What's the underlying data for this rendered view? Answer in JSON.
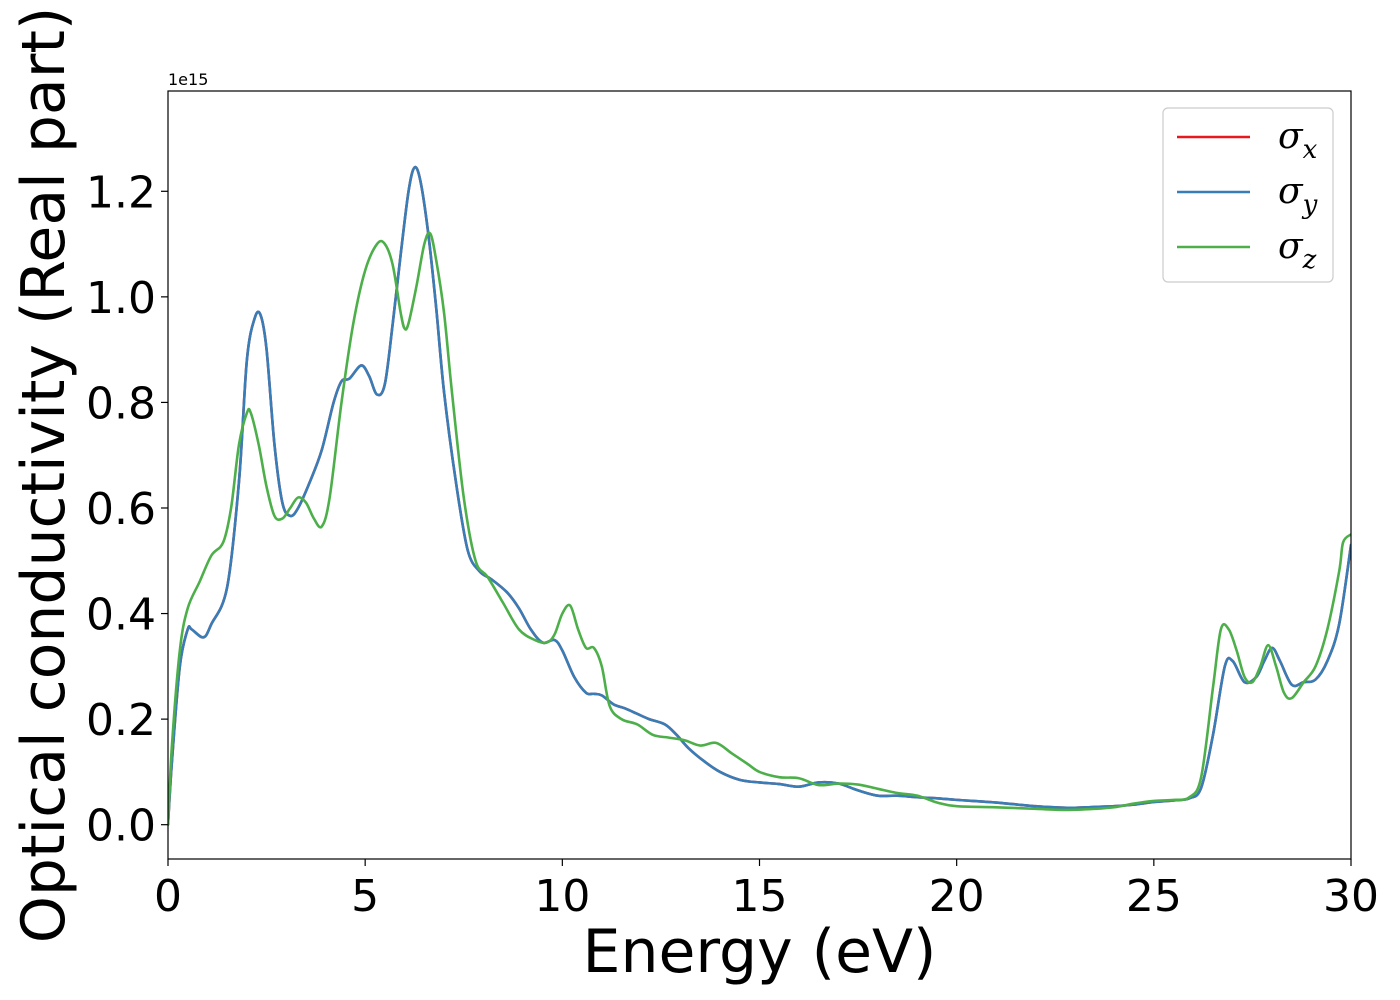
{
  "chart_data": {
    "type": "line",
    "xlabel": "Energy (eV)",
    "ylabel": "Optical conductivity (Real part)",
    "y_offset_label": "1e15",
    "xlim": [
      0,
      30
    ],
    "ylim": [
      -0.065,
      1.39
    ],
    "xticks": [
      0,
      5,
      10,
      15,
      20,
      25,
      30
    ],
    "xtick_labels": [
      "0",
      "5",
      "10",
      "15",
      "20",
      "25",
      "30"
    ],
    "yticks": [
      0.0,
      0.2,
      0.4,
      0.6,
      0.8,
      1.0,
      1.2
    ],
    "ytick_labels": [
      "0.0",
      "0.2",
      "0.4",
      "0.6",
      "0.8",
      "1.0",
      "1.2"
    ],
    "grid": false,
    "legend_position": "top-right",
    "series": [
      {
        "name": "σx",
        "name_base": "σ",
        "name_sub": "x",
        "color": "#e41a1c",
        "x": [
          0.0,
          0.1,
          0.3,
          0.5,
          0.6,
          0.9,
          1.1,
          1.5,
          1.8,
          2.0,
          2.2,
          2.35,
          2.5,
          2.7,
          2.9,
          3.1,
          3.3,
          3.6,
          3.9,
          4.2,
          4.4,
          4.6,
          4.9,
          5.1,
          5.3,
          5.5,
          5.7,
          5.9,
          6.1,
          6.25,
          6.4,
          6.6,
          6.8,
          7.0,
          7.3,
          7.6,
          7.9,
          8.2,
          8.6,
          8.9,
          9.2,
          9.5,
          9.8,
          10.0,
          10.3,
          10.6,
          10.8,
          11.0,
          11.3,
          11.6,
          11.9,
          12.2,
          12.6,
          12.9,
          13.2,
          13.6,
          14.0,
          14.5,
          15.0,
          15.5,
          16.0,
          16.5,
          17.0,
          17.5,
          18.0,
          18.5,
          19.0,
          19.5,
          20.0,
          21.0,
          22.0,
          22.8,
          23.3,
          24.0,
          24.5,
          25.0,
          25.5,
          25.9,
          26.2,
          26.5,
          26.8,
          27.0,
          27.3,
          27.6,
          27.8,
          28.0,
          28.2,
          28.5,
          28.8,
          29.1,
          29.4,
          29.7,
          30.0
        ],
        "y": [
          0.0,
          0.12,
          0.3,
          0.37,
          0.37,
          0.355,
          0.38,
          0.45,
          0.65,
          0.88,
          0.96,
          0.965,
          0.9,
          0.72,
          0.61,
          0.585,
          0.6,
          0.65,
          0.71,
          0.8,
          0.84,
          0.845,
          0.87,
          0.85,
          0.815,
          0.835,
          0.95,
          1.08,
          1.2,
          1.245,
          1.22,
          1.12,
          0.98,
          0.82,
          0.65,
          0.52,
          0.48,
          0.465,
          0.44,
          0.41,
          0.37,
          0.345,
          0.35,
          0.33,
          0.28,
          0.25,
          0.248,
          0.245,
          0.228,
          0.22,
          0.21,
          0.2,
          0.19,
          0.17,
          0.145,
          0.12,
          0.1,
          0.085,
          0.08,
          0.077,
          0.072,
          0.08,
          0.078,
          0.065,
          0.055,
          0.055,
          0.052,
          0.05,
          0.047,
          0.042,
          0.035,
          0.032,
          0.033,
          0.035,
          0.038,
          0.043,
          0.046,
          0.05,
          0.07,
          0.17,
          0.3,
          0.31,
          0.27,
          0.28,
          0.31,
          0.335,
          0.31,
          0.265,
          0.27,
          0.275,
          0.31,
          0.38,
          0.53
        ]
      },
      {
        "name": "σy",
        "name_base": "σ",
        "name_sub": "y",
        "color": "#377eb8",
        "x": [
          0.0,
          0.1,
          0.3,
          0.5,
          0.6,
          0.9,
          1.1,
          1.5,
          1.8,
          2.0,
          2.2,
          2.35,
          2.5,
          2.7,
          2.9,
          3.1,
          3.3,
          3.6,
          3.9,
          4.2,
          4.4,
          4.6,
          4.9,
          5.1,
          5.3,
          5.5,
          5.7,
          5.9,
          6.1,
          6.25,
          6.4,
          6.6,
          6.8,
          7.0,
          7.3,
          7.6,
          7.9,
          8.2,
          8.6,
          8.9,
          9.2,
          9.5,
          9.8,
          10.0,
          10.3,
          10.6,
          10.8,
          11.0,
          11.3,
          11.6,
          11.9,
          12.2,
          12.6,
          12.9,
          13.2,
          13.6,
          14.0,
          14.5,
          15.0,
          15.5,
          16.0,
          16.5,
          17.0,
          17.5,
          18.0,
          18.5,
          19.0,
          19.5,
          20.0,
          21.0,
          22.0,
          22.8,
          23.3,
          24.0,
          24.5,
          25.0,
          25.5,
          25.9,
          26.2,
          26.5,
          26.8,
          27.0,
          27.3,
          27.6,
          27.8,
          28.0,
          28.2,
          28.5,
          28.8,
          29.1,
          29.4,
          29.7,
          30.0
        ],
        "y": [
          0.0,
          0.12,
          0.3,
          0.37,
          0.37,
          0.355,
          0.38,
          0.45,
          0.65,
          0.88,
          0.96,
          0.965,
          0.9,
          0.72,
          0.61,
          0.585,
          0.6,
          0.65,
          0.71,
          0.8,
          0.84,
          0.845,
          0.87,
          0.85,
          0.815,
          0.835,
          0.95,
          1.08,
          1.2,
          1.245,
          1.22,
          1.12,
          0.98,
          0.82,
          0.65,
          0.52,
          0.48,
          0.465,
          0.44,
          0.41,
          0.37,
          0.345,
          0.35,
          0.33,
          0.28,
          0.25,
          0.248,
          0.245,
          0.228,
          0.22,
          0.21,
          0.2,
          0.19,
          0.17,
          0.145,
          0.12,
          0.1,
          0.085,
          0.08,
          0.077,
          0.072,
          0.08,
          0.078,
          0.065,
          0.055,
          0.055,
          0.052,
          0.05,
          0.047,
          0.042,
          0.035,
          0.032,
          0.033,
          0.035,
          0.038,
          0.043,
          0.046,
          0.05,
          0.07,
          0.17,
          0.3,
          0.31,
          0.27,
          0.28,
          0.31,
          0.335,
          0.31,
          0.265,
          0.27,
          0.275,
          0.31,
          0.38,
          0.53
        ]
      },
      {
        "name": "σz",
        "name_base": "σ",
        "name_sub": "z",
        "color": "#4daf4a",
        "x": [
          0.0,
          0.1,
          0.3,
          0.5,
          0.8,
          1.1,
          1.4,
          1.6,
          1.8,
          2.0,
          2.1,
          2.3,
          2.5,
          2.7,
          2.9,
          3.1,
          3.3,
          3.5,
          3.7,
          3.9,
          4.1,
          4.4,
          4.7,
          5.0,
          5.3,
          5.5,
          5.7,
          5.9,
          6.0,
          6.1,
          6.3,
          6.5,
          6.65,
          6.8,
          7.0,
          7.2,
          7.5,
          7.8,
          8.1,
          8.5,
          8.9,
          9.3,
          9.6,
          9.8,
          10.0,
          10.2,
          10.4,
          10.6,
          10.8,
          11.0,
          11.2,
          11.5,
          11.9,
          12.3,
          12.7,
          13.1,
          13.5,
          13.9,
          14.3,
          14.7,
          15.0,
          15.5,
          16.0,
          16.5,
          17.0,
          17.5,
          18.0,
          18.5,
          19.0,
          19.5,
          20.0,
          21.0,
          22.0,
          22.8,
          23.5,
          24.0,
          24.5,
          25.0,
          25.5,
          25.9,
          26.2,
          26.5,
          26.7,
          26.9,
          27.1,
          27.3,
          27.5,
          27.7,
          27.9,
          28.1,
          28.3,
          28.5,
          28.8,
          29.1,
          29.4,
          29.7,
          29.8,
          30.0
        ],
        "y": [
          0.0,
          0.15,
          0.33,
          0.41,
          0.46,
          0.51,
          0.535,
          0.6,
          0.72,
          0.78,
          0.78,
          0.72,
          0.64,
          0.585,
          0.58,
          0.6,
          0.62,
          0.61,
          0.58,
          0.565,
          0.62,
          0.8,
          0.95,
          1.05,
          1.1,
          1.1,
          1.06,
          0.97,
          0.94,
          0.95,
          1.02,
          1.1,
          1.12,
          1.07,
          0.97,
          0.82,
          0.62,
          0.5,
          0.47,
          0.42,
          0.37,
          0.35,
          0.345,
          0.36,
          0.4,
          0.415,
          0.37,
          0.335,
          0.335,
          0.3,
          0.225,
          0.2,
          0.19,
          0.17,
          0.165,
          0.16,
          0.15,
          0.155,
          0.135,
          0.115,
          0.1,
          0.09,
          0.088,
          0.075,
          0.078,
          0.076,
          0.068,
          0.06,
          0.055,
          0.042,
          0.035,
          0.033,
          0.03,
          0.028,
          0.03,
          0.033,
          0.04,
          0.045,
          0.047,
          0.052,
          0.09,
          0.26,
          0.37,
          0.37,
          0.33,
          0.28,
          0.27,
          0.3,
          0.34,
          0.3,
          0.25,
          0.24,
          0.27,
          0.3,
          0.37,
          0.48,
          0.535,
          0.55
        ]
      }
    ]
  }
}
